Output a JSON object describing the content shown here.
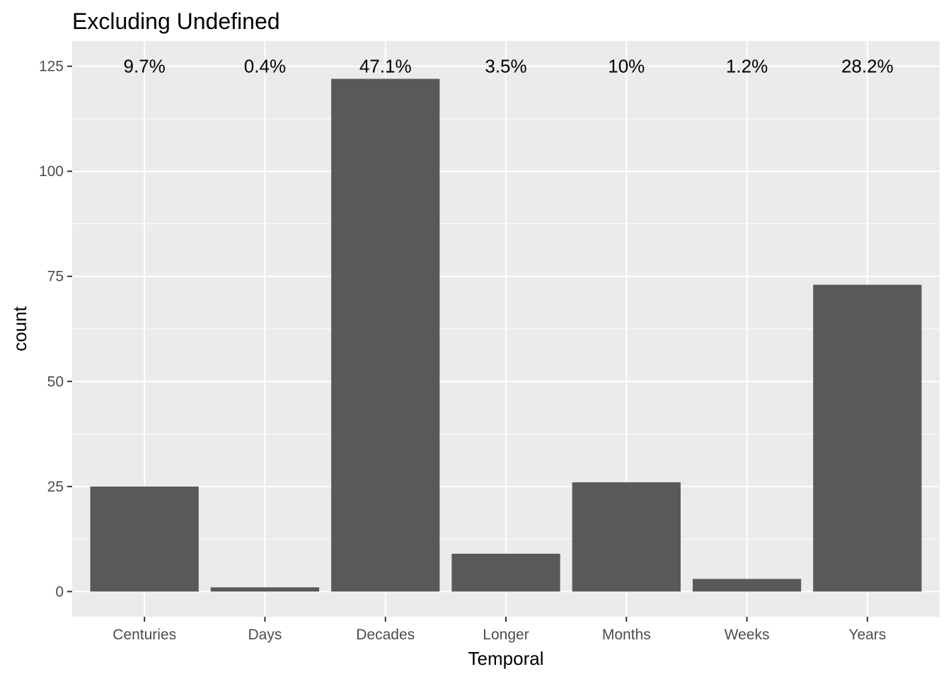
{
  "chart_data": {
    "type": "bar",
    "title": "Excluding Undefined",
    "xlabel": "Temporal",
    "ylabel": "count",
    "categories": [
      "Centuries",
      "Days",
      "Decades",
      "Longer",
      "Months",
      "Weeks",
      "Years"
    ],
    "values": [
      25,
      1,
      122,
      9,
      26,
      3,
      73
    ],
    "percent_labels": [
      "9.7%",
      "0.4%",
      "47.1%",
      "3.5%",
      "10%",
      "1.2%",
      "28.2%"
    ],
    "yticks": [
      0,
      25,
      50,
      75,
      100,
      125
    ],
    "ylim": [
      -6,
      131
    ],
    "grid": true,
    "colors": {
      "panel": "#ebebeb",
      "bar": "#595959",
      "grid": "#ffffff",
      "tick": "#333333"
    }
  }
}
